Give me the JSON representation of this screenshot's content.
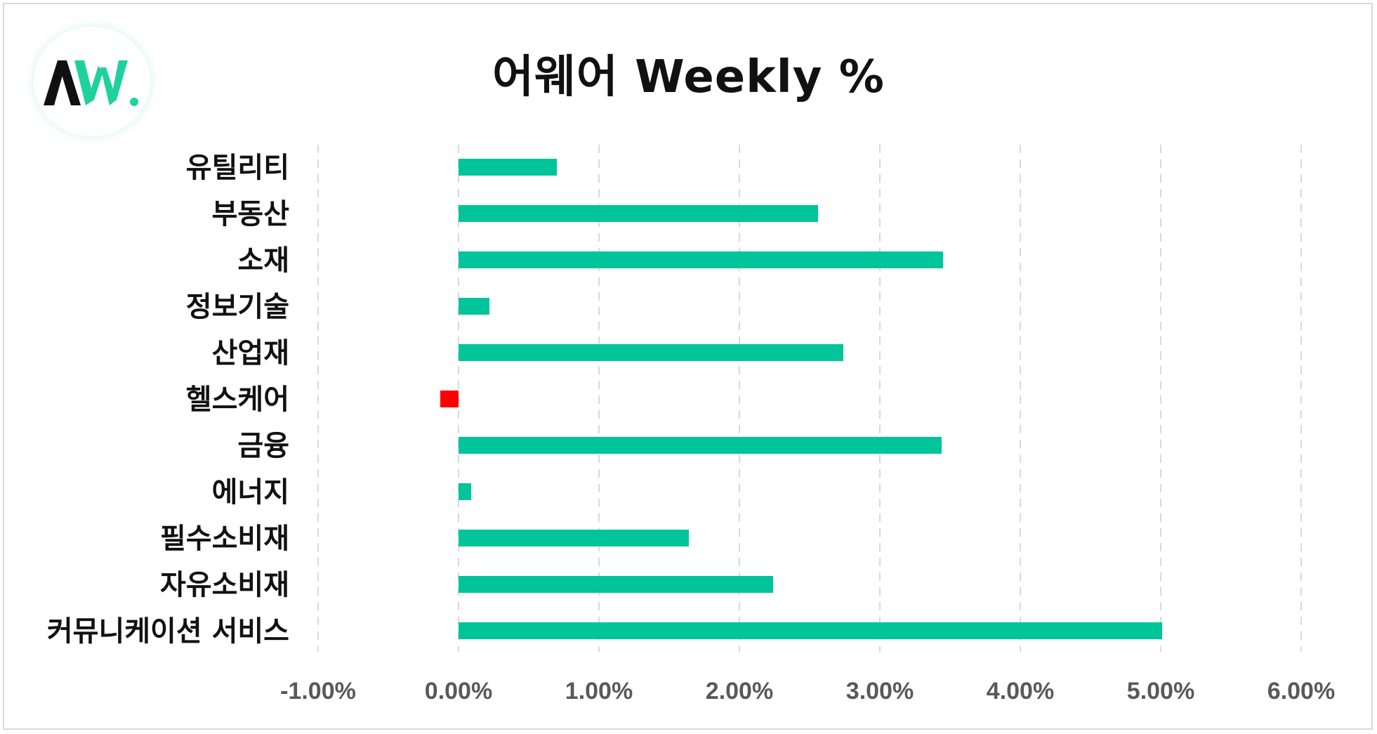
{
  "chart_data": {
    "type": "bar",
    "orientation": "horizontal",
    "title": "어웨어 Weekly %",
    "categories": [
      "유틸리티",
      "부동산",
      "소재",
      "정보기술",
      "산업재",
      "헬스케어",
      "금융",
      "에너지",
      "필수소비재",
      "자유소비재",
      "커뮤니케이션 서비스"
    ],
    "values": [
      0.7,
      2.56,
      3.45,
      0.22,
      2.74,
      -0.13,
      3.44,
      0.09,
      1.64,
      2.24,
      5.01
    ],
    "xlim": [
      -1,
      6
    ],
    "xticks": [
      -1,
      0,
      1,
      2,
      3,
      4,
      5,
      6
    ],
    "xtick_labels": [
      "-1.00%",
      "0.00%",
      "1.00%",
      "2.00%",
      "3.00%",
      "4.00%",
      "5.00%",
      "6.00%"
    ],
    "grid": "vertical-dashed",
    "legend": "none",
    "colors": {
      "positive": "#00c49a",
      "negative": "#ff0000",
      "grid": "#d9d9d9"
    }
  },
  "logo": {
    "name": "AW-logo",
    "colors": {
      "dark": "#111111",
      "accent": "#1fd19d"
    }
  }
}
